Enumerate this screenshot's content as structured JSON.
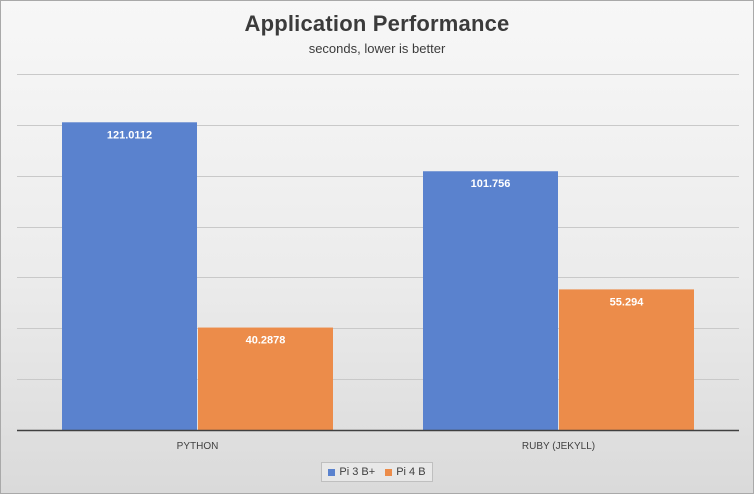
{
  "chart_data": {
    "type": "bar",
    "title": "Application Performance",
    "subtitle": "seconds, lower is better",
    "xlabel": "",
    "ylabel": "",
    "categories": [
      "PYTHON",
      "RUBY (JEKYLL)"
    ],
    "series": [
      {
        "name": "Pi 3 B+",
        "color": "#5a82ce",
        "values": [
          121.0112,
          101.756
        ],
        "labels": [
          "121.0112",
          "101.756"
        ]
      },
      {
        "name": "Pi 4 B",
        "color": "#ec8c4a",
        "values": [
          40.2878,
          55.294
        ],
        "labels": [
          "40.2878",
          "55.294"
        ]
      }
    ],
    "ylim": [
      0,
      140
    ],
    "grid": true,
    "axis_labels_visible": false,
    "legend_position": "bottom",
    "data_labels": "inside-top"
  }
}
